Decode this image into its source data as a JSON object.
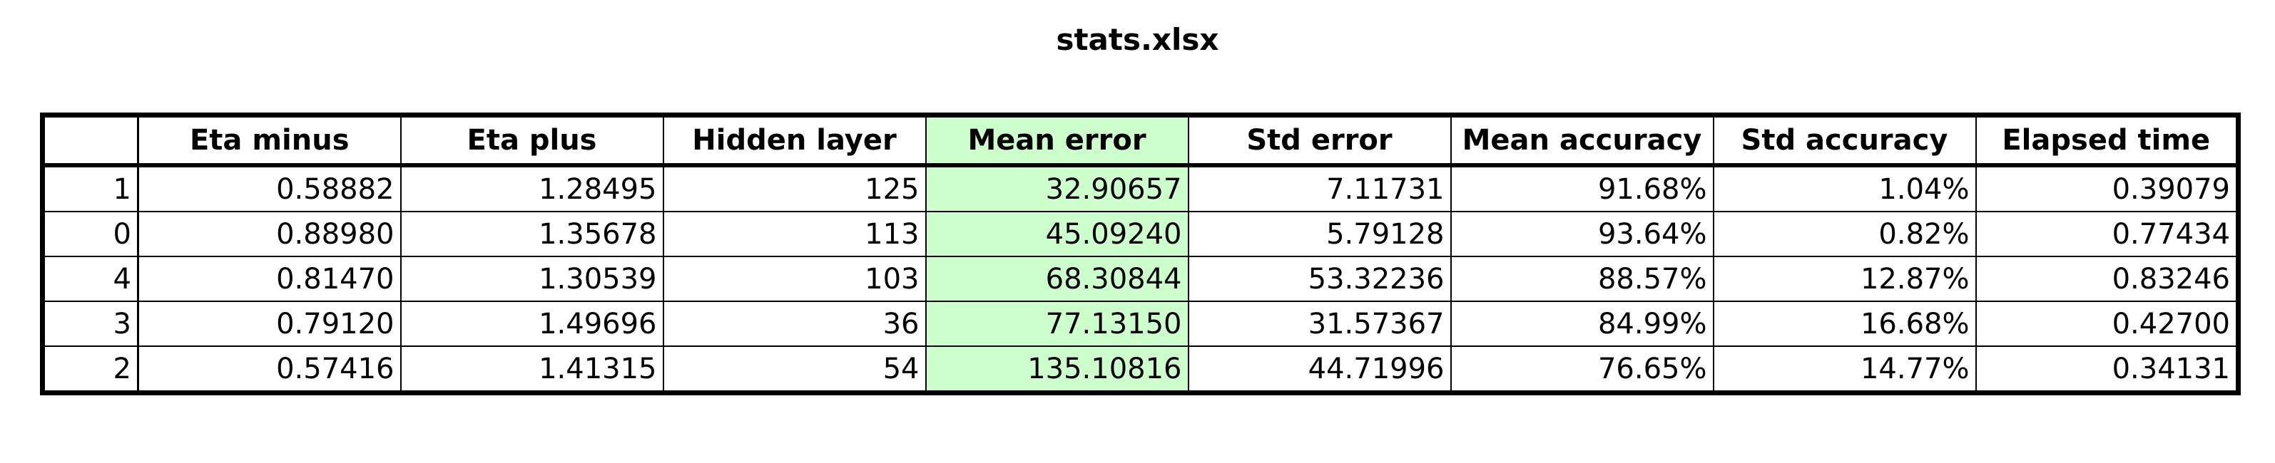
{
  "document": {
    "title": "stats.xlsx"
  },
  "table": {
    "columns": [
      "",
      "Eta minus",
      "Eta plus",
      "Hidden layer",
      "Mean error",
      "Std error",
      "Mean accuracy",
      "Std accuracy",
      "Elapsed time"
    ],
    "highlighted_column": "Mean error",
    "highlight_color": "#ccffcc",
    "rows": [
      [
        "1",
        "0.58882",
        "1.28495",
        "125",
        "32.90657",
        "7.11731",
        "91.68%",
        "1.04%",
        "0.39079"
      ],
      [
        "0",
        "0.88980",
        "1.35678",
        "113",
        "45.09240",
        "5.79128",
        "93.64%",
        "0.82%",
        "0.77434"
      ],
      [
        "4",
        "0.81470",
        "1.30539",
        "103",
        "68.30844",
        "53.32236",
        "88.57%",
        "12.87%",
        "0.83246"
      ],
      [
        "3",
        "0.79120",
        "1.49696",
        "36",
        "77.13150",
        "31.57367",
        "84.99%",
        "16.68%",
        "0.42700"
      ],
      [
        "2",
        "0.57416",
        "1.41315",
        "54",
        "135.10816",
        "44.71996",
        "76.65%",
        "14.77%",
        "0.34131"
      ]
    ]
  }
}
